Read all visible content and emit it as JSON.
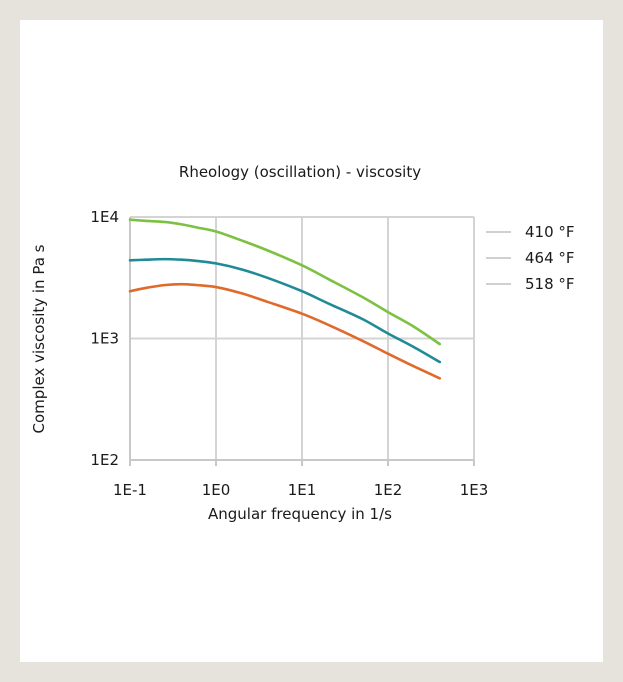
{
  "chart_data": {
    "type": "line",
    "title": "Rheology (oscillation) - viscosity",
    "xlabel": "Angular frequency in 1/s",
    "ylabel": "Complex viscosity in Pa s",
    "xscale": "log",
    "yscale": "log",
    "xlim": [
      0.1,
      1000
    ],
    "ylim": [
      100,
      10000
    ],
    "xticks": [
      0.1,
      1,
      10,
      100,
      1000
    ],
    "xtick_labels": [
      "1E-1",
      "1E0",
      "1E1",
      "1E2",
      "1E3"
    ],
    "yticks": [
      100,
      1000,
      10000
    ],
    "ytick_labels": [
      "1E2",
      "1E3",
      "1E4"
    ],
    "grid": true,
    "legend_position": "right",
    "series": [
      {
        "name": "410 °F",
        "color": "#7dc142",
        "x": [
          0.1,
          0.15,
          0.25,
          0.4,
          0.6,
          1,
          2,
          4,
          10,
          20,
          50,
          100,
          200,
          400
        ],
        "y": [
          9500,
          9300,
          9100,
          8700,
          8200,
          7600,
          6400,
          5300,
          4000,
          3100,
          2200,
          1650,
          1250,
          900
        ]
      },
      {
        "name": "464 °F",
        "color": "#1f8b96",
        "x": [
          0.1,
          0.15,
          0.25,
          0.4,
          0.6,
          1,
          2,
          4,
          10,
          20,
          50,
          100,
          200,
          400
        ],
        "y": [
          4400,
          4450,
          4500,
          4450,
          4350,
          4150,
          3700,
          3150,
          2450,
          1950,
          1450,
          1100,
          850,
          640
        ]
      },
      {
        "name": "518 °F",
        "color": "#e06a2c",
        "x": [
          0.1,
          0.15,
          0.25,
          0.4,
          0.6,
          1,
          2,
          4,
          10,
          20,
          50,
          100,
          200,
          400
        ],
        "y": [
          2450,
          2600,
          2750,
          2800,
          2750,
          2650,
          2350,
          2000,
          1600,
          1300,
          960,
          750,
          590,
          470
        ]
      }
    ]
  }
}
